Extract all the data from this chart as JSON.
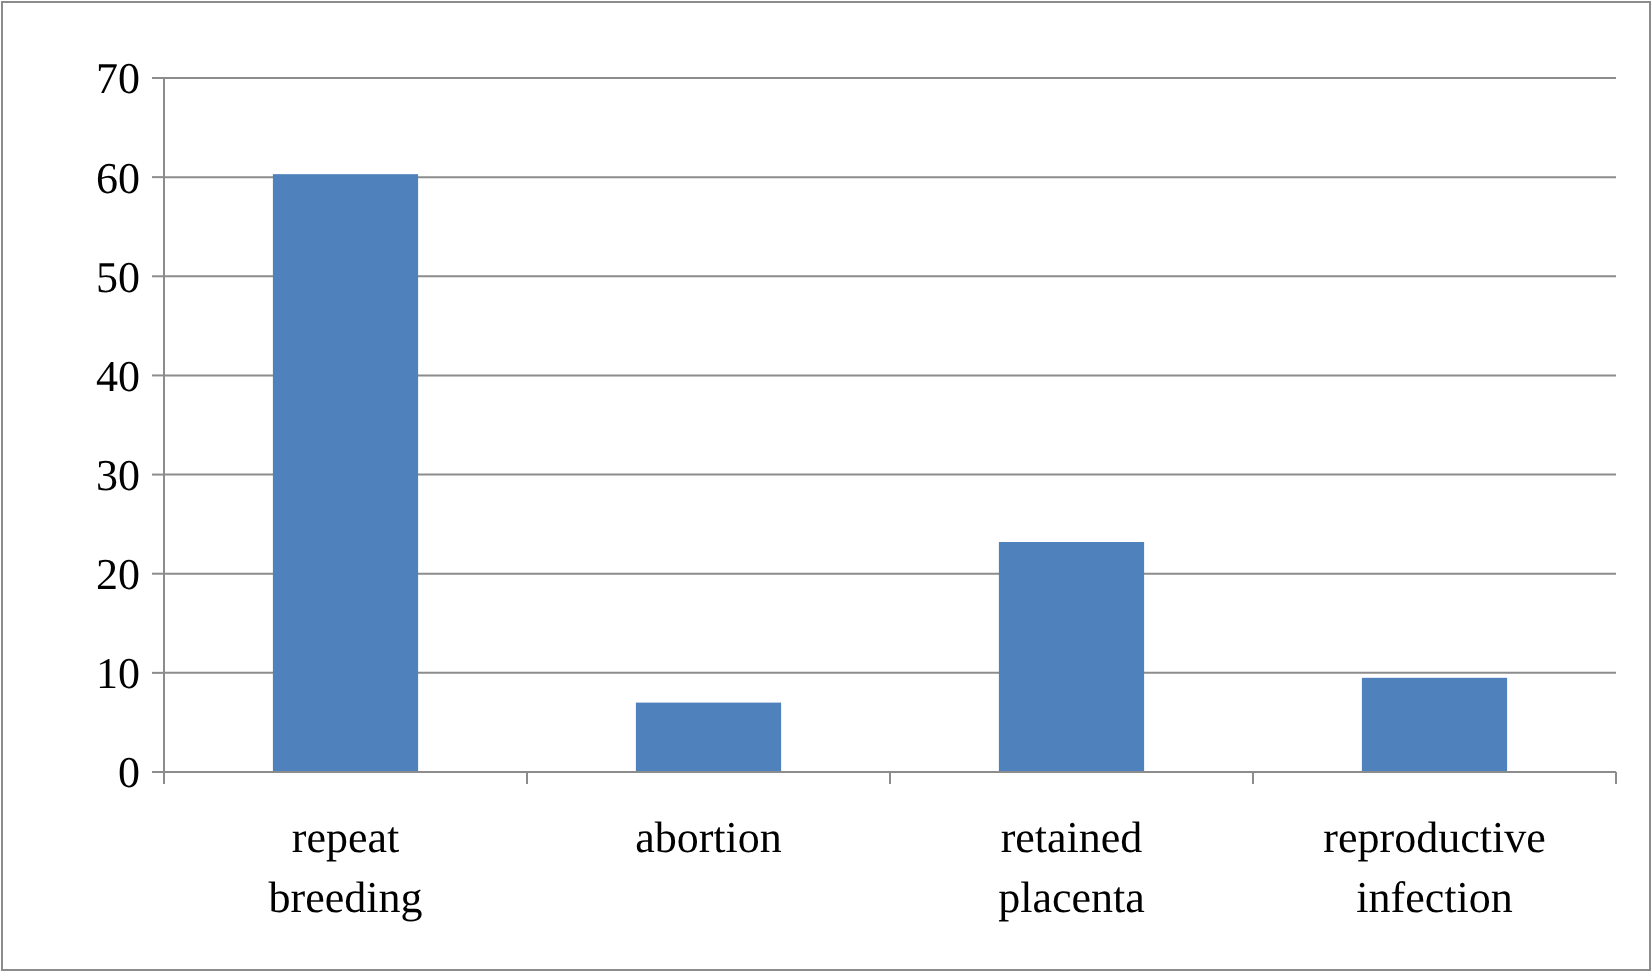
{
  "chart_data": {
    "type": "bar",
    "categories": [
      "repeat breeding",
      "abortion",
      "retained placenta",
      "reproductive infection"
    ],
    "values": [
      60.3,
      7,
      23.2,
      9.5
    ],
    "color": "#4f81bd",
    "ylim": [
      0,
      70
    ],
    "yticks": [
      0,
      10,
      20,
      30,
      40,
      50,
      60,
      70
    ],
    "grid": "y"
  }
}
